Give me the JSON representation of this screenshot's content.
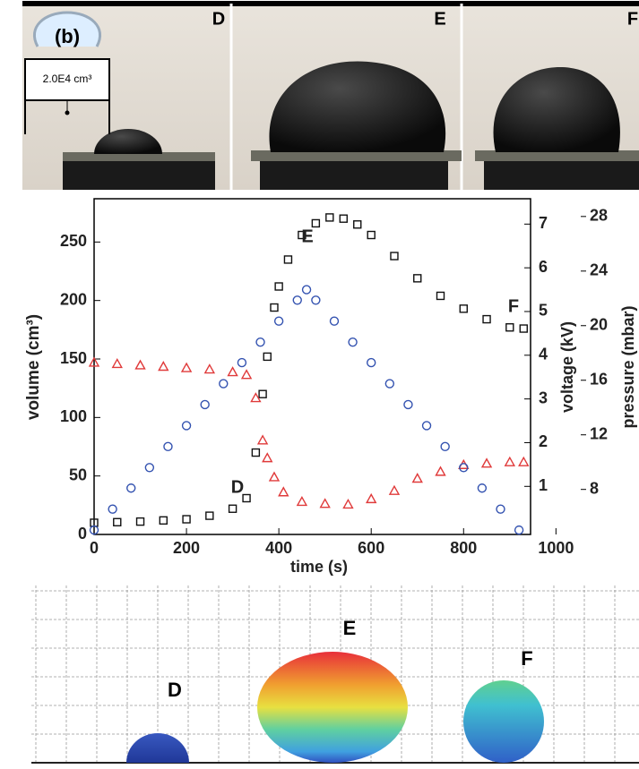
{
  "photos": {
    "panel_label": "(b)",
    "inset_label": "2.0E4 cm³",
    "labels": [
      "D",
      "E",
      "F"
    ]
  },
  "chart_data": {
    "type": "scatter",
    "xlabel": "time (s)",
    "ylabel": "volume (cm³)",
    "y2label": "voltage (kV)",
    "y3label": "pressure (mbar)",
    "xlim": [
      0,
      945
    ],
    "xticks": [
      0,
      200,
      400,
      600,
      800,
      1000
    ],
    "ylim": [
      0,
      287
    ],
    "yticks": [
      0,
      50,
      100,
      150,
      200,
      250
    ],
    "y2lim": [
      -0.1,
      7.58
    ],
    "y2ticks": [
      1,
      2,
      3,
      4,
      5,
      6,
      7
    ],
    "y3lim": [
      4.7,
      29.3
    ],
    "y3ticks": [
      8,
      12,
      16,
      20,
      24,
      28
    ],
    "annotations": [
      "D",
      "E",
      "F"
    ],
    "series": [
      {
        "color": "#111111",
        "marker": "square",
        "axis": "y",
        "x": [
          0,
          50,
          100,
          150,
          200,
          250,
          300,
          330,
          350,
          365,
          375,
          390,
          400,
          420,
          450,
          480,
          510,
          540,
          570,
          600,
          650,
          700,
          750,
          800,
          850,
          900,
          930
        ],
        "values": [
          10,
          10.5,
          11,
          12,
          13,
          16,
          22,
          31,
          70,
          120,
          152,
          194,
          212,
          235,
          256,
          266,
          271,
          270,
          265,
          256,
          238,
          219,
          204,
          193,
          184,
          177,
          176
        ]
      },
      {
        "color": "#e03a3a",
        "marker": "triangle",
        "axis": "y3",
        "x": [
          0,
          50,
          100,
          150,
          200,
          250,
          300,
          330,
          350,
          365,
          375,
          390,
          410,
          450,
          500,
          550,
          600,
          650,
          700,
          750,
          800,
          850,
          900,
          930
        ],
        "values": [
          17.3,
          17.2,
          17.1,
          17,
          16.9,
          16.8,
          16.6,
          16.4,
          14.7,
          11.6,
          10.3,
          8.9,
          7.8,
          7.1,
          6.95,
          6.9,
          7.3,
          7.9,
          8.8,
          9.3,
          9.8,
          9.9,
          10,
          10
        ]
      },
      {
        "color": "#3352b0",
        "marker": "circle",
        "axis": "y2",
        "x": [
          0,
          40,
          80,
          120,
          160,
          200,
          240,
          280,
          320,
          360,
          400,
          440,
          460,
          480,
          520,
          560,
          600,
          640,
          680,
          720,
          760,
          800,
          840,
          880,
          920
        ],
        "values": [
          0,
          0.48,
          0.96,
          1.43,
          1.91,
          2.39,
          2.87,
          3.35,
          3.83,
          4.3,
          4.78,
          5.26,
          5.5,
          5.26,
          4.78,
          4.3,
          3.83,
          3.35,
          2.87,
          2.39,
          1.91,
          1.43,
          0.96,
          0.48,
          0
        ]
      }
    ]
  },
  "simulation": {
    "labels": [
      "D",
      "E",
      "F"
    ]
  }
}
